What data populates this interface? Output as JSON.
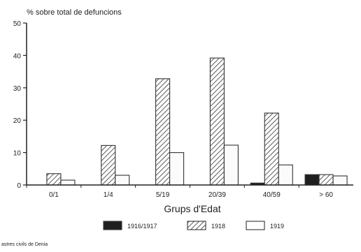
{
  "chart_data": {
    "type": "bar",
    "title": "",
    "ylabel": "% sobre total de defuncions",
    "xlabel": "Grups d'Edat",
    "categories": [
      "0/1",
      "1/4",
      "5/19",
      "20/39",
      "40/59",
      "> 60"
    ],
    "ylim": [
      0,
      50
    ],
    "yticks": [
      "0",
      "10",
      "20",
      "30",
      "40",
      "50"
    ],
    "series": [
      {
        "name": "1916/1917",
        "values": [
          0,
          0,
          0,
          0,
          0.6,
          3.2
        ],
        "style": "solid",
        "color": "#1f1f1f"
      },
      {
        "name": "1918",
        "values": [
          3.5,
          12.2,
          32.8,
          39.2,
          22.2,
          3.2
        ],
        "style": "hatch",
        "color": "#333333"
      },
      {
        "name": "1919",
        "values": [
          1.5,
          3.0,
          10.0,
          12.3,
          6.2,
          2.8
        ],
        "style": "open",
        "color": "#444444"
      }
    ],
    "legend_position": "bottom",
    "grid": false
  },
  "source_note": "astres civils de Denia"
}
